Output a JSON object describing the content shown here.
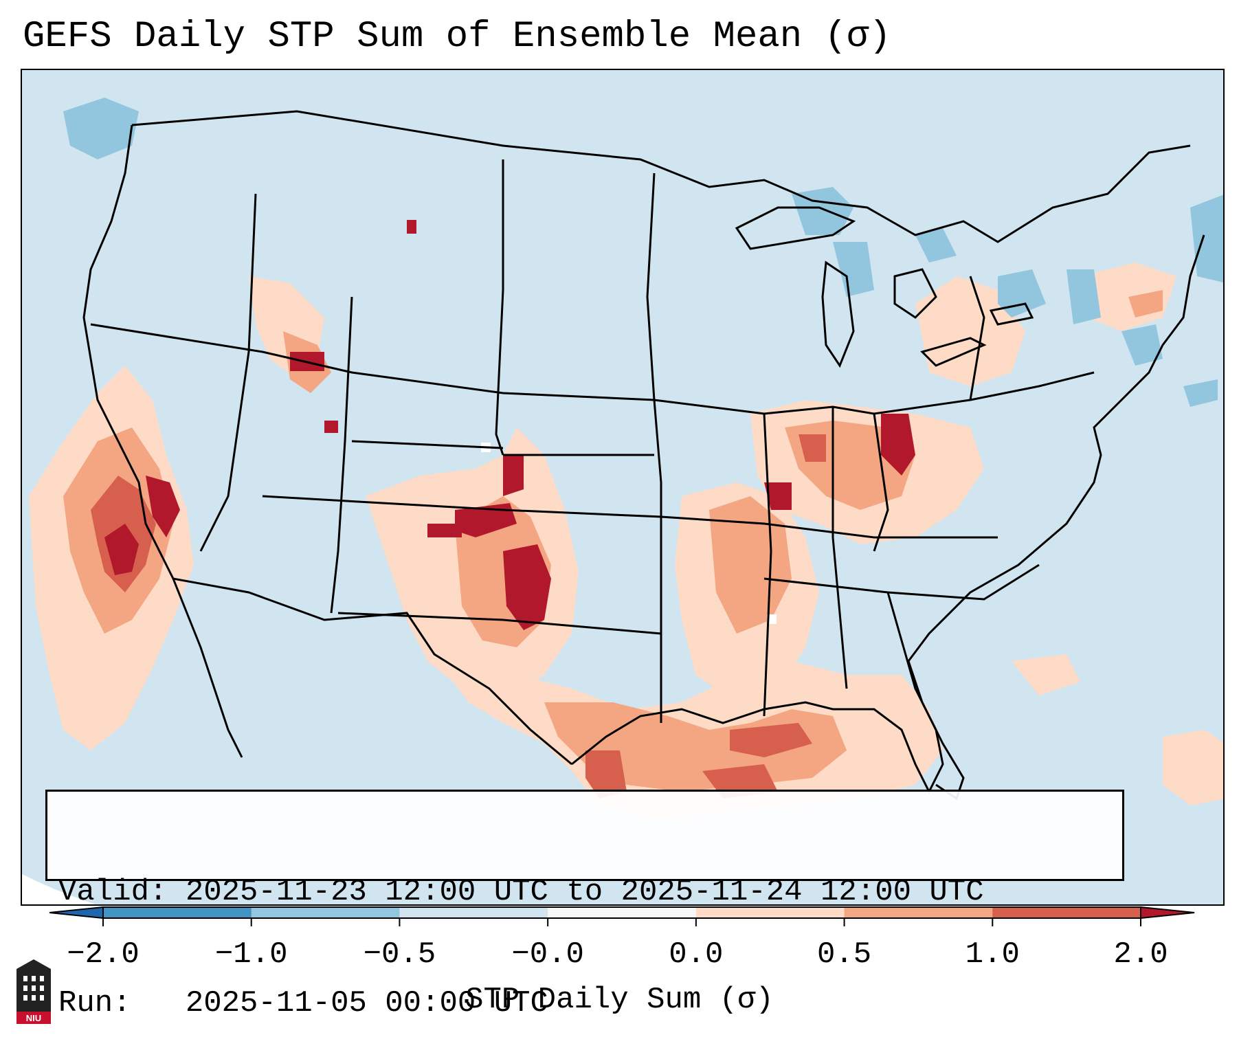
{
  "title": "GEFS Daily STP Sum of Ensemble Mean (σ)",
  "info": {
    "valid_line": "Valid: 2025-11-23 12:00 UTC to 2025-11-24 12:00 UTC",
    "run_line": "Run:   2025-11-05 00:00 UTC"
  },
  "colorbar": {
    "label": "STP Daily Sum (σ)",
    "ticks": [
      "−2.0",
      "−1.0",
      "−0.5",
      "−0.0",
      "0.0",
      "0.5",
      "1.0",
      "2.0"
    ],
    "colors": [
      "#4393c3",
      "#92c5de",
      "#d1e5f0",
      "#f7f7f7",
      "#fddbc7",
      "#f4a582",
      "#d6604d"
    ],
    "extend_low_color": "#2166ac",
    "extend_high_color": "#b2182b"
  },
  "map": {
    "background_color": "#d1e5f0",
    "region": "Contiguous United States",
    "highlight_areas": [
      {
        "name": "California coast",
        "category": "0.5 to 1.0"
      },
      {
        "name": "Southern High Plains",
        "category": "above 2.0"
      },
      {
        "name": "Texas",
        "category": "0.0 to 1.0"
      },
      {
        "name": "Gulf Coast",
        "category": "0.0 to 1.0"
      },
      {
        "name": "Ohio Valley",
        "category": "0.5 to 2.0"
      },
      {
        "name": "Great Lakes",
        "category": "-1.0 to -0.5"
      }
    ]
  },
  "logo_text": "NIU"
}
